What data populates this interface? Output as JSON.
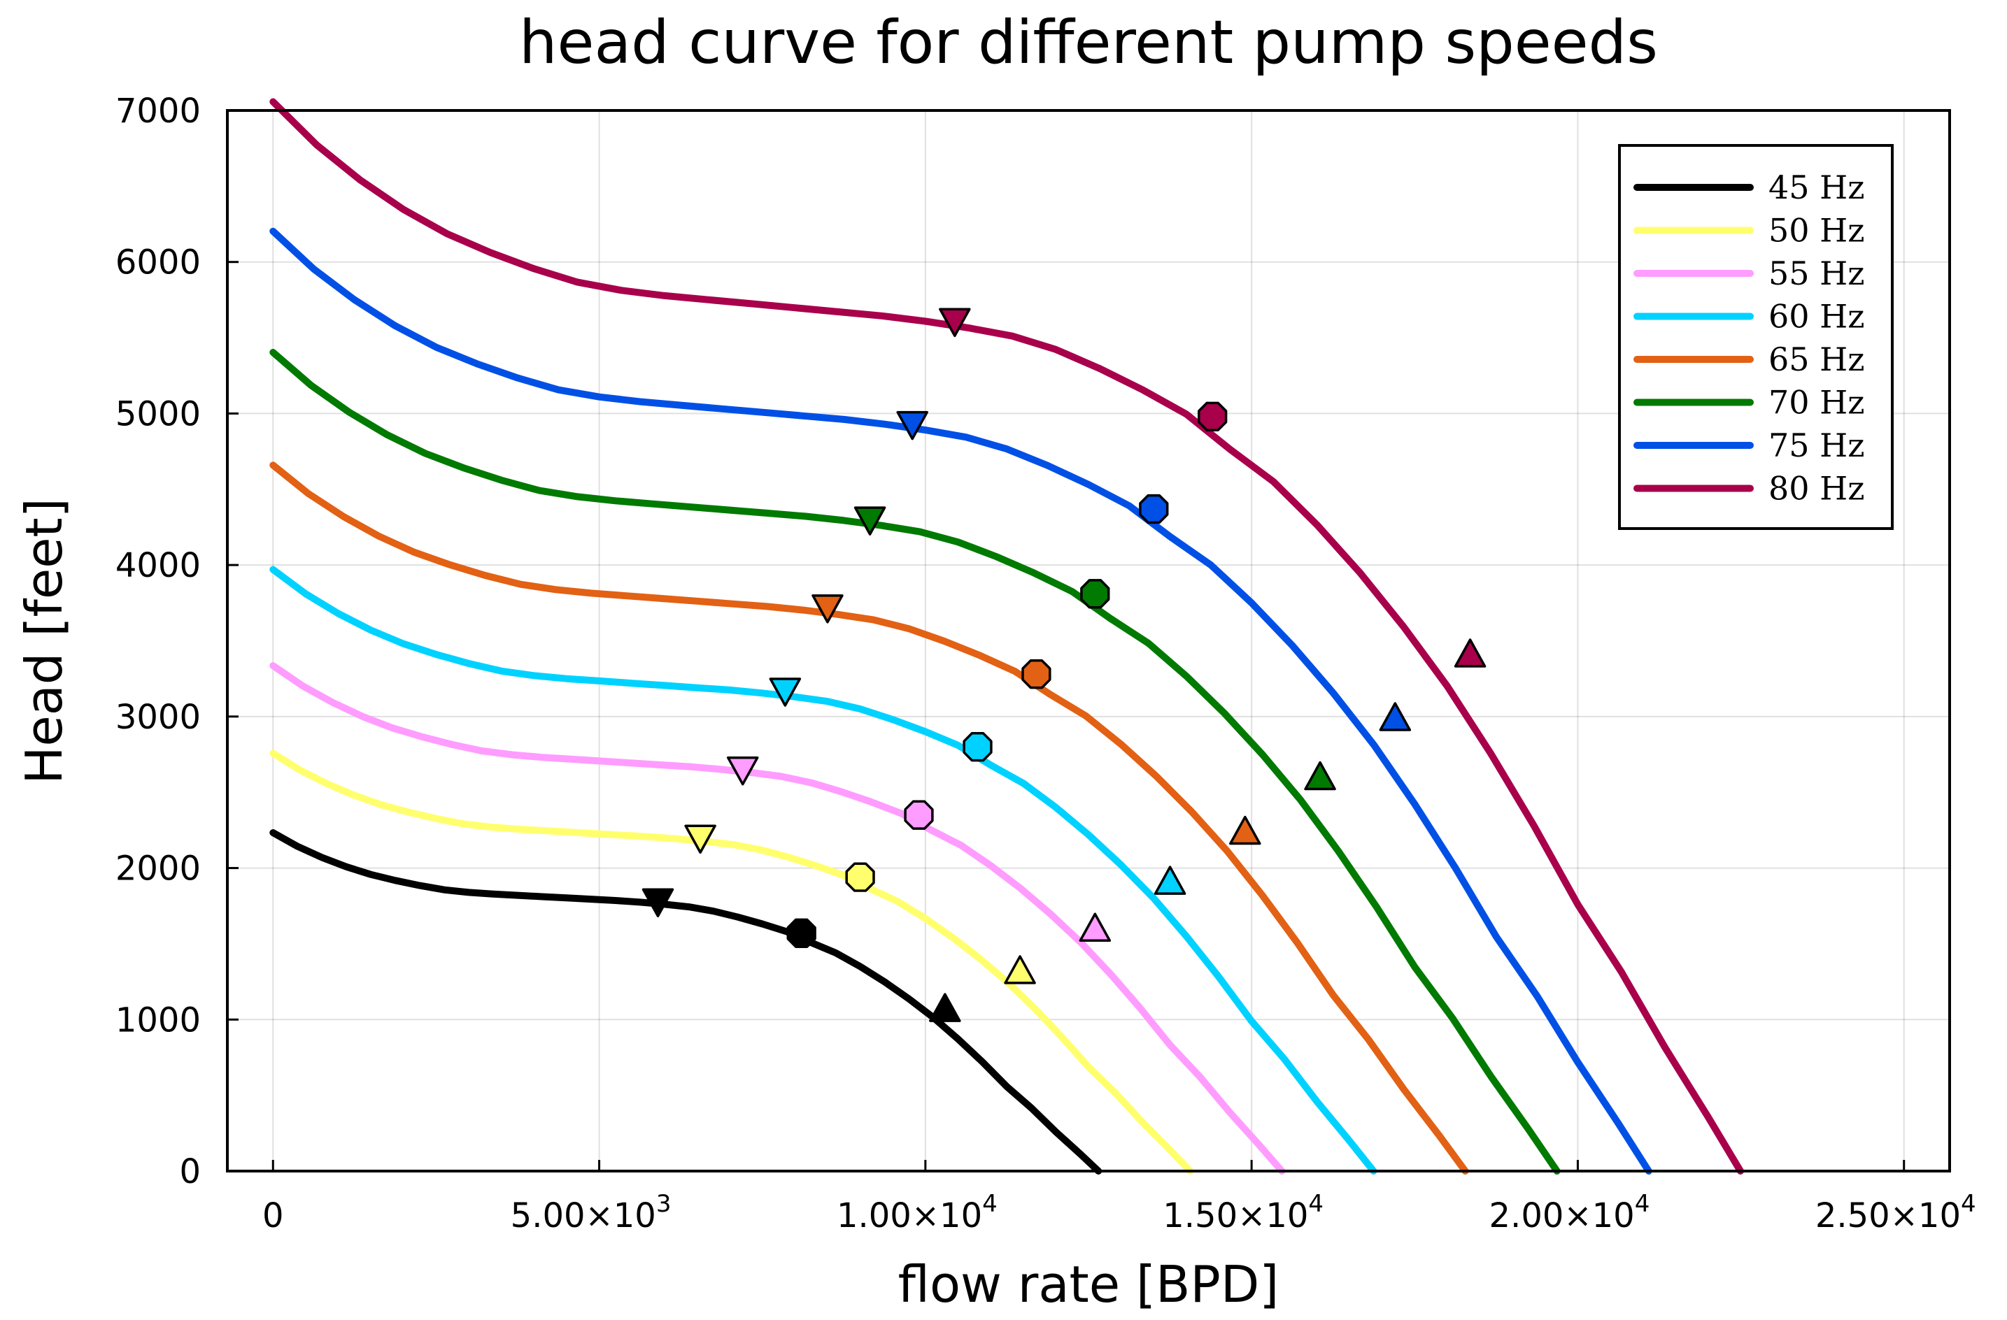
{
  "chart_data": {
    "type": "line",
    "title": "head curve for different pump speeds",
    "xlabel": "flow rate [BPD]",
    "ylabel": "Head [feet]",
    "xlim": [
      -700,
      25700
    ],
    "ylim": [
      0,
      7000
    ],
    "xticks": [
      {
        "value": 0,
        "label": "0"
      },
      {
        "value": 5000,
        "label": "5.00×10",
        "exp": "3"
      },
      {
        "value": 10000,
        "label": "1.00×10",
        "exp": "4"
      },
      {
        "value": 15000,
        "label": "1.50×10",
        "exp": "4"
      },
      {
        "value": 20000,
        "label": "2.00×10",
        "exp": "4"
      },
      {
        "value": 25000,
        "label": "2.50×10",
        "exp": "4"
      }
    ],
    "yticks": [
      {
        "value": 0,
        "label": "0"
      },
      {
        "value": 1000,
        "label": "1000"
      },
      {
        "value": 2000,
        "label": "2000"
      },
      {
        "value": 3000,
        "label": "3000"
      },
      {
        "value": 4000,
        "label": "4000"
      },
      {
        "value": 5000,
        "label": "5000"
      },
      {
        "value": 6000,
        "label": "6000"
      },
      {
        "value": 7000,
        "label": "7000"
      }
    ],
    "grid": true,
    "legend_position": "top-right",
    "reference": {
      "freq": 60,
      "x": [
        0,
        500,
        1000,
        1500,
        2000,
        2500,
        3000,
        3500,
        4000,
        4500,
        5000,
        5500,
        6000,
        6500,
        7000,
        7500,
        8000,
        8500,
        9000,
        9500,
        10000,
        10500,
        11000,
        11500,
        12000,
        12500,
        13000,
        13500,
        14000,
        14500,
        15000,
        15500,
        16000,
        16500,
        16870
      ],
      "y": [
        3970,
        3810,
        3680,
        3570,
        3480,
        3410,
        3350,
        3300,
        3270,
        3250,
        3235,
        3220,
        3205,
        3190,
        3175,
        3155,
        3130,
        3100,
        3050,
        2980,
        2900,
        2810,
        2680,
        2560,
        2400,
        2220,
        2020,
        1800,
        1550,
        1280,
        990,
        740,
        460,
        200,
        0
      ]
    },
    "series": [
      {
        "name": "45 Hz",
        "freq": 45,
        "color": "#000000",
        "marker_fill": "#000000"
      },
      {
        "name": "50 Hz",
        "freq": 50,
        "color": "#ffff6e",
        "marker_fill": "#ffff6e"
      },
      {
        "name": "55 Hz",
        "freq": 55,
        "color": "#ff9cff",
        "marker_fill": "#ff9cff"
      },
      {
        "name": "60 Hz",
        "freq": 60,
        "color": "#00d2ff",
        "marker_fill": "#00d2ff"
      },
      {
        "name": "65 Hz",
        "freq": 65,
        "color": "#e26114",
        "marker_fill": "#e26114"
      },
      {
        "name": "70 Hz",
        "freq": 70,
        "color": "#007a00",
        "marker_fill": "#007a00"
      },
      {
        "name": "75 Hz",
        "freq": 75,
        "color": "#0050e6",
        "marker_fill": "#0050e6"
      },
      {
        "name": "80 Hz",
        "freq": 80,
        "color": "#a8004b",
        "marker_fill": "#a8004b"
      }
    ],
    "markers": {
      "triangle_down": [
        {
          "series": "45 Hz",
          "x": 5900,
          "y": 1780
        },
        {
          "series": "50 Hz",
          "x": 6550,
          "y": 2200
        },
        {
          "series": "55 Hz",
          "x": 7200,
          "y": 2650
        },
        {
          "series": "60 Hz",
          "x": 7850,
          "y": 3170
        },
        {
          "series": "65 Hz",
          "x": 8500,
          "y": 3720
        },
        {
          "series": "70 Hz",
          "x": 9150,
          "y": 4300
        },
        {
          "series": "75 Hz",
          "x": 9800,
          "y": 4930
        },
        {
          "series": "80 Hz",
          "x": 10450,
          "y": 5610
        }
      ],
      "circle": [
        {
          "series": "45 Hz",
          "x": 8100,
          "y": 1570
        },
        {
          "series": "50 Hz",
          "x": 9000,
          "y": 1940
        },
        {
          "series": "55 Hz",
          "x": 9900,
          "y": 2350
        },
        {
          "series": "60 Hz",
          "x": 10800,
          "y": 2800
        },
        {
          "series": "65 Hz",
          "x": 11700,
          "y": 3280
        },
        {
          "series": "70 Hz",
          "x": 12600,
          "y": 3810
        },
        {
          "series": "75 Hz",
          "x": 13500,
          "y": 4370
        },
        {
          "series": "80 Hz",
          "x": 14400,
          "y": 4980
        }
      ],
      "triangle_up": [
        {
          "series": "45 Hz",
          "x": 10300,
          "y": 1070
        },
        {
          "series": "50 Hz",
          "x": 11450,
          "y": 1320
        },
        {
          "series": "55 Hz",
          "x": 12600,
          "y": 1600
        },
        {
          "series": "60 Hz",
          "x": 13750,
          "y": 1910
        },
        {
          "series": "65 Hz",
          "x": 14900,
          "y": 2240
        },
        {
          "series": "70 Hz",
          "x": 16050,
          "y": 2600
        },
        {
          "series": "75 Hz",
          "x": 17200,
          "y": 2990
        },
        {
          "series": "80 Hz",
          "x": 18350,
          "y": 3410
        }
      ]
    }
  }
}
